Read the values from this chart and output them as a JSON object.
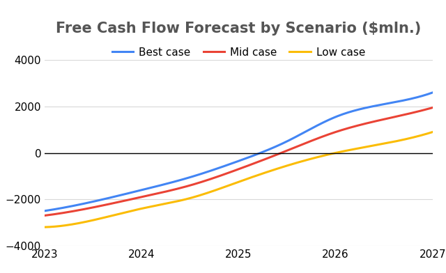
{
  "title": "Free Cash Flow Forecast by Scenario ($mln.)",
  "xlim": [
    2023,
    2027
  ],
  "ylim": [
    -4000,
    4000
  ],
  "yticks": [
    -4000,
    -2000,
    0,
    2000,
    4000
  ],
  "xticks": [
    2023,
    2024,
    2025,
    2026,
    2027
  ],
  "series": [
    {
      "label": "Best case",
      "color": "#4285F4",
      "x": [
        2023,
        2023.5,
        2024,
        2024.5,
        2025,
        2025.5,
        2026,
        2026.5,
        2027
      ],
      "y": [
        -2500,
        -2100,
        -1600,
        -1050,
        -350,
        500,
        1550,
        2100,
        2600
      ]
    },
    {
      "label": "Mid case",
      "color": "#EA4335",
      "x": [
        2023,
        2023.5,
        2024,
        2024.5,
        2025,
        2025.5,
        2026,
        2026.5,
        2027
      ],
      "y": [
        -2700,
        -2350,
        -1900,
        -1400,
        -700,
        100,
        900,
        1450,
        1950
      ]
    },
    {
      "label": "Low case",
      "color": "#FBBC04",
      "x": [
        2023,
        2023.5,
        2024,
        2024.5,
        2025,
        2025.5,
        2026,
        2026.5,
        2027
      ],
      "y": [
        -3200,
        -2900,
        -2400,
        -1950,
        -1250,
        -550,
        0,
        400,
        900
      ]
    }
  ],
  "legend_loc": "upper center",
  "legend_ncol": 3,
  "background_color": "#ffffff",
  "grid_color": "#d8d8d8",
  "zero_line_color": "#000000",
  "title_fontsize": 15,
  "legend_fontsize": 11,
  "tick_fontsize": 11,
  "line_width": 2.2
}
